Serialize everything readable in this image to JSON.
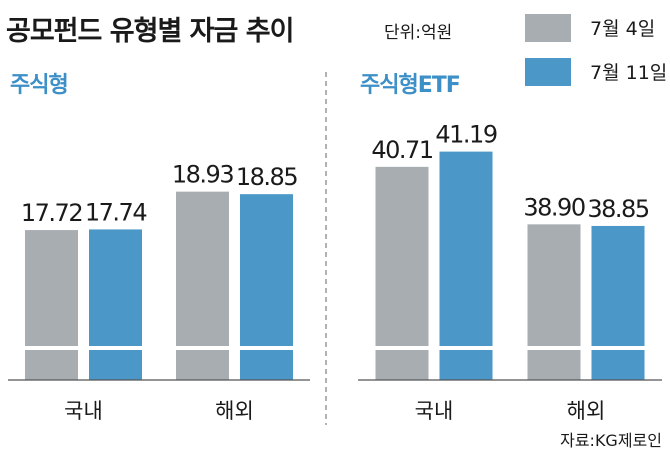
{
  "title": "공모펀드 유형별 자금 추이",
  "unit": "단위:억원",
  "source": "자료:KG제로인",
  "chart_data": [
    {
      "type": "bar",
      "title": "주식형",
      "categories": [
        "국내",
        "해외"
      ],
      "series": [
        {
          "name": "7월 4일",
          "color": "#a8adb1",
          "values": [
            17.72,
            18.93
          ]
        },
        {
          "name": "7월 11일",
          "color": "#4a97c8",
          "values": [
            17.74,
            18.85
          ]
        }
      ],
      "ylim": [
        13,
        21.5
      ]
    },
    {
      "type": "bar",
      "title": "주식형ETF",
      "categories": [
        "국내",
        "해외"
      ],
      "series": [
        {
          "color": "#a8adb1",
          "values": [
            40.71,
            38.9
          ],
          "value_labels": [
            "40.71",
            "38.90"
          ]
        },
        {
          "color": "#4a97c8",
          "values": [
            41.19,
            38.85
          ]
        }
      ],
      "ylim": [
        34,
        42.5
      ]
    }
  ]
}
